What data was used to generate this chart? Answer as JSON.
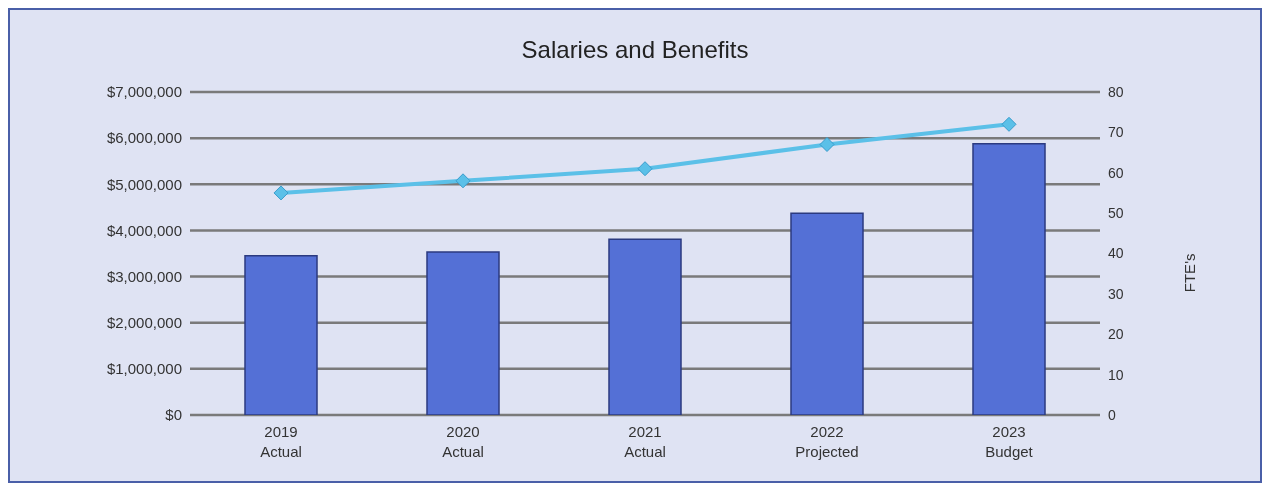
{
  "chart_data": {
    "type": "bar",
    "title": "Salaries and Benefits",
    "y2label": "FTE's",
    "categories": [
      "2019\nActual",
      "2020\nActual",
      "2021\nActual",
      "2022\nProjected",
      "2023\nBudget"
    ],
    "series": [
      {
        "color": "#5470d6",
        "values": [
          3450000,
          3530000,
          3810000,
          4370000,
          5880000
        ]
      },
      {
        "type": "line",
        "axis": "y2",
        "color": "#5bc0e8",
        "marker": "diamond",
        "values": [
          55,
          58,
          61,
          67,
          72
        ]
      }
    ],
    "ylim": [
      0,
      7000000
    ],
    "yticks": [
      {
        "value": 0,
        "label": "$0"
      },
      {
        "value": 1000000,
        "label": "$1,000,000"
      },
      {
        "value": 2000000,
        "label": "$2,000,000"
      },
      {
        "value": 3000000,
        "label": "$3,000,000"
      },
      {
        "value": 4000000,
        "label": "$4,000,000"
      },
      {
        "value": 5000000,
        "label": "$5,000,000"
      },
      {
        "value": 6000000,
        "label": "$6,000,000"
      },
      {
        "value": 7000000,
        "label": "$7,000,000"
      }
    ],
    "y2lim": [
      0,
      80
    ],
    "y2ticks": [
      0,
      10,
      20,
      30,
      40,
      50,
      60,
      70,
      80
    ],
    "grid": "y"
  }
}
